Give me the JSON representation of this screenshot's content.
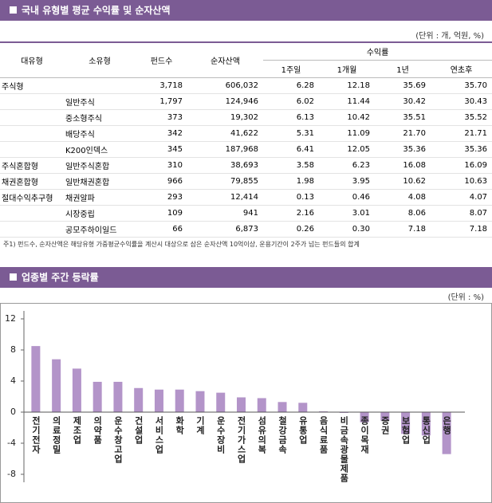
{
  "section1": {
    "title": "국내 유형별 평균 수익률 및 순자산액",
    "unit": "(단위 : 개, 억원, %)"
  },
  "table": {
    "header_top": [
      "대유형",
      "소유형",
      "펀드수",
      "순자산액",
      "수익률"
    ],
    "header_sub": [
      "1주일",
      "1개월",
      "1년",
      "연초후"
    ],
    "rows": [
      [
        "주식형",
        null,
        "3,718",
        "606,032",
        "6.28",
        "12.18",
        "35.69",
        "35.70"
      ],
      [
        null,
        "일반주식",
        "1,797",
        "124,946",
        "6.02",
        "11.44",
        "30.42",
        "30.43"
      ],
      [
        null,
        "중소형주식",
        "373",
        "19,302",
        "6.13",
        "10.42",
        "35.51",
        "35.52"
      ],
      [
        null,
        "배당주식",
        "342",
        "41,622",
        "5.31",
        "11.09",
        "21.70",
        "21.71"
      ],
      [
        null,
        "K200인덱스",
        "345",
        "187,968",
        "6.41",
        "12.05",
        "35.36",
        "35.36"
      ],
      [
        "주식혼합형",
        "일반주식혼합",
        "310",
        "38,693",
        "3.58",
        "6.23",
        "16.08",
        "16.09"
      ],
      [
        "채권혼합형",
        "일반채권혼합",
        "966",
        "79,855",
        "1.98",
        "3.95",
        "10.62",
        "10.63"
      ],
      [
        "절대수익추구형",
        "채권알파",
        "293",
        "12,414",
        "0.13",
        "0.46",
        "4.08",
        "4.07"
      ],
      [
        null,
        "시장중립",
        "109",
        "941",
        "2.16",
        "3.01",
        "8.06",
        "8.07"
      ],
      [
        null,
        "공모주하이일드",
        "66",
        "6,873",
        "0.26",
        "0.30",
        "7.18",
        "7.18"
      ]
    ]
  },
  "footnote": "주1) 펀드수, 순자산액은 해당유형 가중평균수익률을 계산시 대상으로 삼은 순자산액 10억이상, 운용기간이 2주가 넘는 펀드들의 합계",
  "section2": {
    "title": "업종별 주간 등락률",
    "unit": "(단위 : %)"
  },
  "chart_data": {
    "type": "bar",
    "color": "#b394c9",
    "categories": [
      "전기전자",
      "의료정밀",
      "제조업",
      "의약품",
      "운수창고업",
      "건설업",
      "서비스업",
      "화학",
      "기계",
      "운수장비",
      "전기가스업",
      "섬유의복",
      "철강금속",
      "유통업",
      "음식료품",
      "비금속광물제품",
      "종이목재",
      "증권",
      "보험업",
      "통신업",
      "은행"
    ],
    "values": [
      8.5,
      6.8,
      5.6,
      3.9,
      3.9,
      3.1,
      2.9,
      2.9,
      2.7,
      2.5,
      1.9,
      1.8,
      1.3,
      1.2,
      0.1,
      -0.1,
      -1.3,
      -1.1,
      -2.8,
      -3.0,
      -5.4
    ],
    "ylim": [
      -8,
      12
    ],
    "yticks": [
      -8,
      -4,
      0,
      4,
      8,
      12
    ]
  }
}
